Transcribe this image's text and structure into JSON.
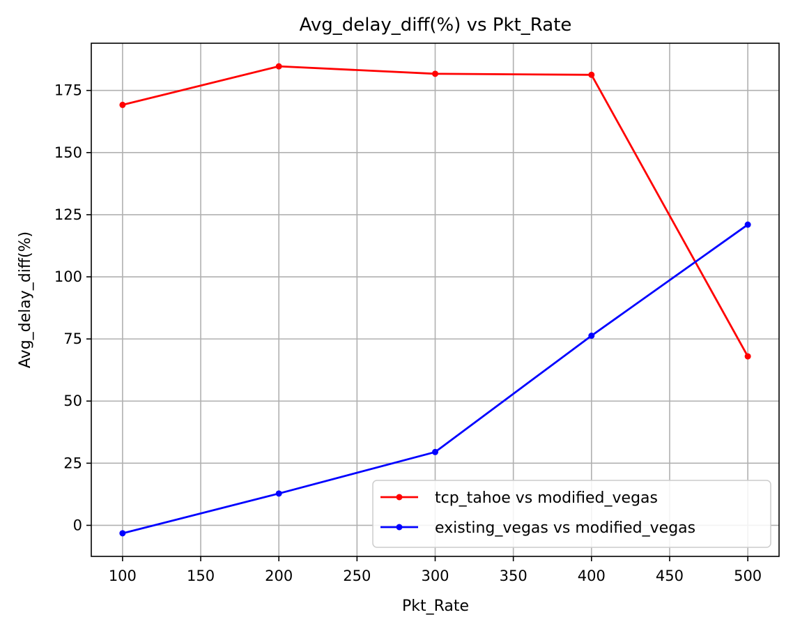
{
  "chart_data": {
    "type": "line",
    "title": "Avg_delay_diff(%) vs Pkt_Rate",
    "xlabel": "Pkt_Rate",
    "ylabel": "Avg_delay_diff(%)",
    "x": [
      100,
      200,
      300,
      400,
      500
    ],
    "xlim": [
      80,
      520
    ],
    "ylim": [
      -12.5,
      194
    ],
    "xticks": [
      100,
      150,
      200,
      250,
      300,
      350,
      400,
      450,
      500
    ],
    "yticks": [
      0,
      25,
      50,
      75,
      100,
      125,
      150,
      175
    ],
    "grid": true,
    "legend_position": "lower-right",
    "series": [
      {
        "name": "tcp_tahoe vs modified_vegas",
        "color": "#ff0000",
        "values": [
          169.2,
          184.7,
          181.7,
          181.3,
          68.0
        ]
      },
      {
        "name": "existing_vegas vs modified_vegas",
        "color": "#0000ff",
        "values": [
          -3.2,
          12.8,
          29.5,
          76.3,
          121.0
        ]
      }
    ]
  }
}
